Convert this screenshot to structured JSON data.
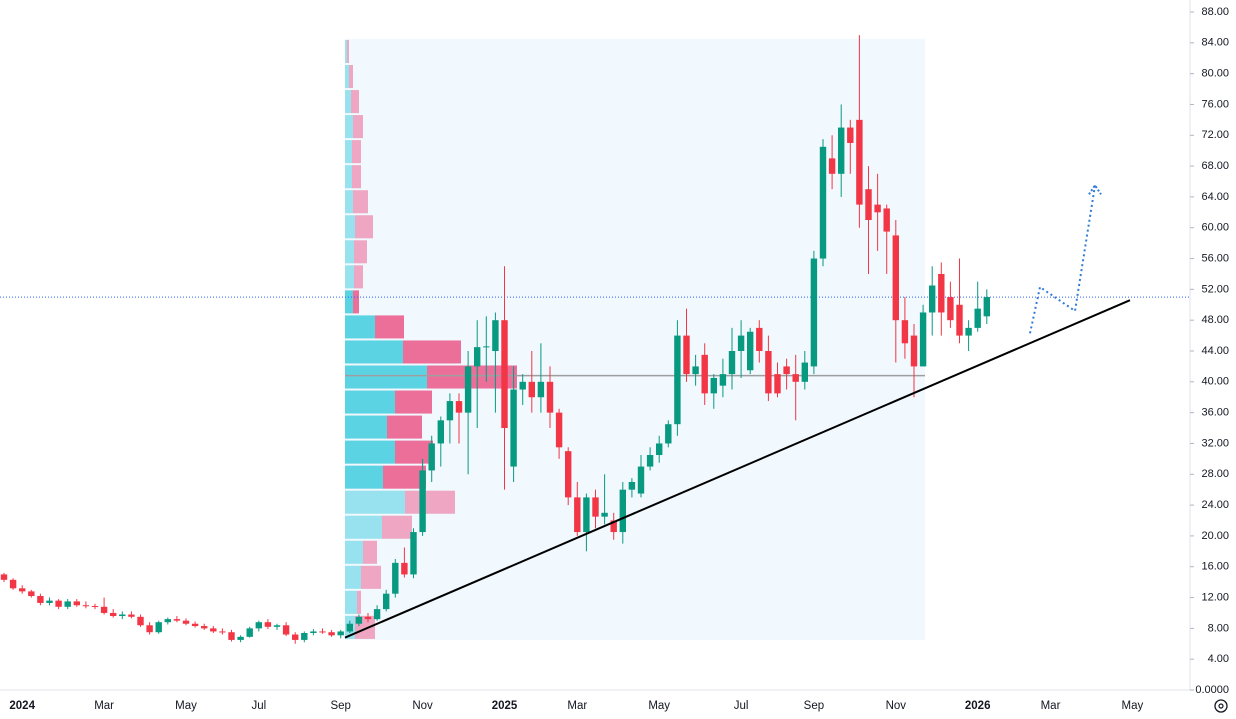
{
  "chart_data": {
    "type": "candlestick",
    "categories": [
      null,
      null,
      "2024",
      null,
      null,
      null,
      null,
      null,
      null,
      null,
      null,
      "Mar",
      null,
      null,
      null,
      null,
      null,
      null,
      null,
      null,
      "May",
      null,
      null,
      null,
      null,
      null,
      null,
      null,
      "Jul",
      null,
      null,
      null,
      null,
      null,
      null,
      null,
      null,
      "Sep",
      null,
      null,
      null,
      null,
      null,
      null,
      null,
      null,
      "Nov",
      null,
      null,
      null,
      null,
      null,
      null,
      null,
      null,
      "2025",
      null,
      null,
      null,
      null,
      null,
      null,
      null,
      "Mar",
      null,
      null,
      null,
      null,
      null,
      null,
      null,
      null,
      "May",
      null,
      null,
      null,
      null,
      null,
      null,
      null,
      null,
      "Jul",
      null,
      null,
      null,
      null,
      null,
      null,
      null,
      "Sep",
      null,
      null,
      null,
      null,
      null,
      null,
      null,
      null,
      "Nov",
      null,
      null,
      null,
      null,
      null,
      null,
      null,
      null,
      "2026",
      null,
      null,
      null,
      null,
      null,
      null,
      null,
      "Mar",
      null,
      null,
      null,
      null,
      null,
      null,
      null,
      null,
      "May",
      null,
      null,
      null,
      null,
      null,
      null
    ],
    "open": [
      15,
      14.3,
      13.2,
      12.8,
      12.2,
      11.3,
      11.6,
      10.8,
      11.5,
      11,
      10.9,
      10.8,
      10,
      9.6,
      9.8,
      9.5,
      8.4,
      7.5,
      8.8,
      9.2,
      9,
      8.6,
      8.3,
      8,
      7.6,
      7.5,
      6.5,
      6.9,
      8,
      8.8,
      8.2,
      8.4,
      7.2,
      6.5,
      7.4,
      7.6,
      7.5,
      7.1,
      7.6,
      8.6,
      9.5,
      9.2,
      10.5,
      12.5,
      16.5,
      15,
      20.5,
      28.5,
      32,
      35,
      37.5,
      36,
      42,
      44.5,
      44,
      48,
      29,
      39,
      40,
      38,
      40,
      36,
      31,
      25,
      20.5,
      25,
      22.5,
      22,
      20.5,
      26,
      25.5,
      29,
      30.5,
      32,
      34.5,
      46,
      41,
      43.5,
      38.5,
      39.5,
      41,
      44,
      41.5,
      47,
      44,
      41,
      42,
      41,
      40,
      42,
      56,
      69,
      67,
      73,
      74,
      65,
      63,
      62.5,
      59,
      48,
      46,
      42,
      49,
      54,
      51,
      50,
      46,
      47,
      48.5,
      null,
      null,
      null,
      null,
      null,
      null,
      null,
      null,
      null,
      null,
      null,
      null,
      null,
      null,
      null,
      null,
      null,
      null,
      null,
      null,
      null,
      null
    ],
    "high": [
      15.2,
      14.5,
      13.6,
      13,
      12.5,
      12,
      11.8,
      11.8,
      11.8,
      11.5,
      11.2,
      12,
      10.5,
      10.2,
      10.2,
      9.8,
      8.8,
      9,
      9.4,
      9.6,
      9.3,
      8.9,
      8.6,
      8.3,
      8,
      7.8,
      7.1,
      8.2,
      9,
      9.2,
      8.6,
      8.8,
      7.5,
      7.6,
      7.9,
      8,
      7.8,
      7.8,
      9,
      9.8,
      10,
      11,
      13,
      17,
      18.5,
      21,
      30,
      33,
      35.5,
      38.5,
      38.5,
      44,
      48,
      48.5,
      49,
      55,
      42,
      41,
      44,
      45,
      42,
      36.5,
      31.5,
      27,
      25.5,
      26,
      28,
      23,
      27,
      27.5,
      30.5,
      31.5,
      33,
      35,
      48,
      49.5,
      43.5,
      45,
      41,
      43,
      47,
      48,
      47,
      48,
      46,
      42.5,
      43,
      43.5,
      44,
      57,
      71.5,
      72,
      76,
      74,
      85,
      68,
      67,
      63,
      61,
      51,
      47.5,
      50,
      55,
      55.5,
      53,
      56,
      48,
      53,
      52,
      null,
      null,
      null,
      null,
      null,
      null,
      null,
      null,
      null,
      null,
      null,
      null,
      null,
      null,
      null,
      null,
      null,
      null,
      null,
      null,
      null,
      null
    ],
    "low": [
      14,
      13,
      12.5,
      12,
      11,
      11,
      10.5,
      10.5,
      10.8,
      10.6,
      10.5,
      9.8,
      9.4,
      9.2,
      9.3,
      8.2,
      7.2,
      7.3,
      8.5,
      8.8,
      8.4,
      8.1,
      7.8,
      7.4,
      7.2,
      6.3,
      6.2,
      6.8,
      7.6,
      7.9,
      7.8,
      7,
      6,
      6.2,
      7.1,
      7.3,
      6.9,
      6.7,
      7.4,
      8.3,
      8.8,
      9,
      10.2,
      12,
      14.6,
      14.5,
      20,
      27,
      29,
      32,
      32,
      28,
      34,
      40,
      36,
      26,
      27,
      37,
      36,
      36,
      34,
      30,
      24,
      20,
      18,
      21,
      21.5,
      19.5,
      19,
      25,
      25,
      28.5,
      29.5,
      31.5,
      33,
      40,
      39.5,
      37,
      36.5,
      38,
      39,
      40.5,
      41,
      42.5,
      37.5,
      38,
      39,
      35,
      39,
      41,
      55,
      65,
      64,
      67,
      60,
      54,
      57,
      54,
      42.5,
      43,
      38,
      42,
      46,
      46,
      47,
      45,
      44,
      46.5,
      47.5,
      null,
      null,
      null,
      null,
      null,
      null,
      null,
      null,
      null,
      null,
      null,
      null,
      null,
      null,
      null,
      null,
      null,
      null,
      null,
      null,
      null,
      null
    ],
    "close": [
      14.3,
      13.2,
      12.8,
      12.2,
      11.3,
      11.6,
      10.8,
      11.5,
      11,
      10.9,
      10.8,
      10,
      9.6,
      9.8,
      9.5,
      8.4,
      7.5,
      8.8,
      9.2,
      9,
      8.6,
      8.3,
      8,
      7.6,
      7.5,
      6.5,
      6.9,
      8,
      8.8,
      8.2,
      8.4,
      7.2,
      6.5,
      7.4,
      7.6,
      7.5,
      7.1,
      7.6,
      8.6,
      9.5,
      9.2,
      10.5,
      12.5,
      16.5,
      15,
      20.5,
      28.5,
      32,
      35,
      37.5,
      36,
      42,
      44.5,
      44.6,
      48,
      34,
      39,
      40,
      38,
      40,
      36,
      31.5,
      25,
      20.5,
      25,
      22.5,
      23,
      20.5,
      26,
      27,
      29,
      30.5,
      32,
      34.5,
      46,
      41,
      42,
      38.5,
      40.5,
      41,
      44,
      46,
      46.5,
      44,
      38.5,
      38.5,
      41,
      40,
      42.5,
      56,
      70.5,
      67,
      73,
      71,
      63,
      61,
      62,
      59.5,
      48,
      45,
      42,
      49,
      52.5,
      49,
      48,
      46,
      47,
      49.5,
      51,
      null,
      null,
      null,
      null,
      null,
      null,
      null,
      null,
      null,
      null,
      null,
      null,
      null,
      null,
      null,
      null,
      null,
      null,
      null,
      null,
      null,
      null
    ],
    "up_color": "#089981",
    "down_color": "#f23645",
    "ylim": [
      0,
      88
    ],
    "yticks": [
      {
        "value": 0,
        "label": "0.0000"
      },
      {
        "value": 4,
        "label": "4.00"
      },
      {
        "value": 8,
        "label": "8.00"
      },
      {
        "value": 12,
        "label": "12.00"
      },
      {
        "value": 16,
        "label": "16.00"
      },
      {
        "value": 20,
        "label": "20.00"
      },
      {
        "value": 24,
        "label": "24.00"
      },
      {
        "value": 28,
        "label": "28.00"
      },
      {
        "value": 32,
        "label": "32.00"
      },
      {
        "value": 36,
        "label": "36.00"
      },
      {
        "value": 40,
        "label": "40.00"
      },
      {
        "value": 44,
        "label": "44.00"
      },
      {
        "value": 48,
        "label": "48.00"
      },
      {
        "value": 52,
        "label": "52.00"
      },
      {
        "value": 56,
        "label": "56.00"
      },
      {
        "value": 60,
        "label": "60.00"
      },
      {
        "value": 64,
        "label": "64.00"
      },
      {
        "value": 68,
        "label": "68.00"
      },
      {
        "value": 72,
        "label": "72.00"
      },
      {
        "value": 76,
        "label": "76.00"
      },
      {
        "value": 80,
        "label": "80.00"
      },
      {
        "value": 84,
        "label": "84.00"
      },
      {
        "value": 88,
        "label": "88.00"
      }
    ],
    "grid": false,
    "last_price": 51,
    "volume_profile": {
      "bins": [
        6.5,
        9.75,
        13,
        16.25,
        19.5,
        22.75,
        26,
        29.25,
        32.5,
        35.75,
        39,
        42.25,
        45.5,
        48.75,
        52,
        55.25,
        58.5,
        61.75,
        65,
        68.25,
        71.5,
        74.75,
        78,
        81.25,
        84.5
      ],
      "up": [
        10,
        12,
        16,
        18,
        37,
        60,
        38,
        50,
        42,
        50,
        82,
        58,
        30,
        8,
        9,
        9,
        10,
        8,
        7,
        7,
        8,
        6,
        4,
        2
      ],
      "down": [
        20,
        4,
        20,
        14,
        30,
        50,
        43,
        38,
        35,
        37,
        90,
        58,
        29,
        6,
        9,
        13,
        18,
        15,
        9,
        9,
        10,
        8,
        4,
        2
      ],
      "value_area": [
        26,
        52
      ],
      "poc": 40.8,
      "up_color": "#5bd3e3",
      "down_color": "#ec6f9a"
    },
    "trendline": {
      "values": [
        6.8,
        50.6
      ],
      "color": "#000000"
    },
    "projection": {
      "values": [
        46.3,
        52.3,
        49.2,
        65.5
      ],
      "color": "#2f7bd6"
    }
  }
}
